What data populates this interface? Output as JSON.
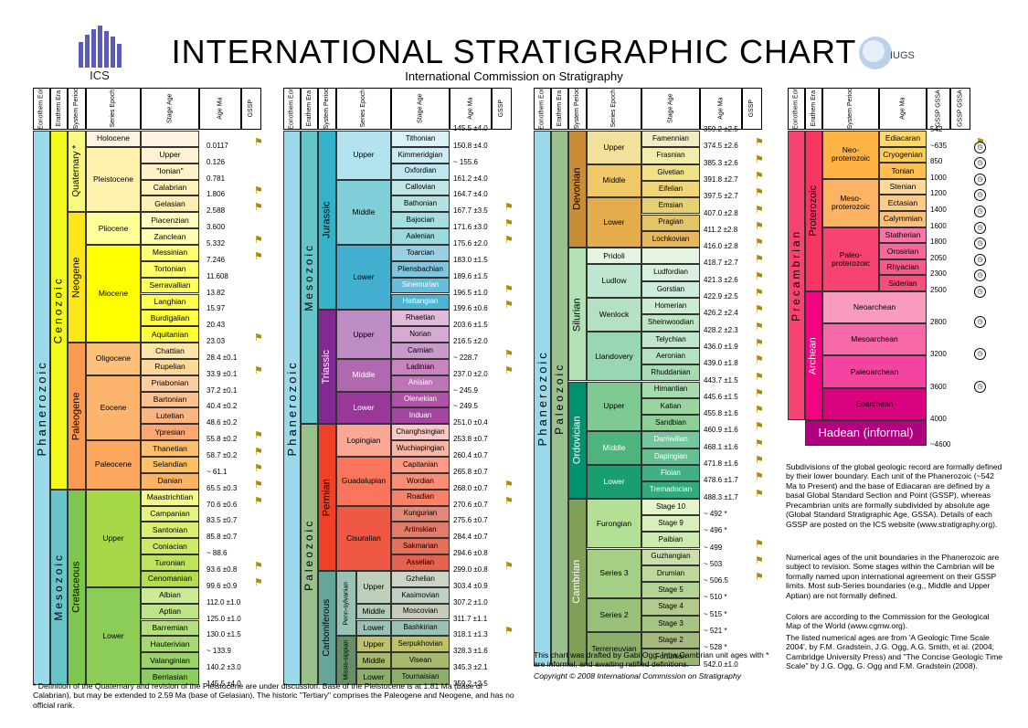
{
  "header": {
    "title": "INTERNATIONAL STRATIGRAPHIC CHART",
    "subtitle": "International Commission on Stratigraphy",
    "ics_label": "ICS",
    "iugs_label": "IUGS"
  },
  "colors": {
    "phanerozoic": "#9AD9EA",
    "cenozoic": "#F2F91D",
    "quaternary": "#F9F97F",
    "neogene": "#FFE619",
    "paleogene": "#FD9A52",
    "mesozoic": "#67C5CA",
    "cretaceous": "#7FC64E",
    "jurassic": "#34B2C9",
    "triassic": "#812B92",
    "paleozoic": "#99C08D",
    "permian": "#F04028",
    "carboniferous": "#67A599",
    "devonian": "#CB8C37",
    "silurian": "#B3E1B6",
    "ordovician": "#009270",
    "cambrian": "#7FA056",
    "precambrian": "#F74370",
    "proterozoic": "#F73563",
    "archean": "#F0047F",
    "hadean": "#AE027E"
  },
  "col_headers": {
    "eon": "Eonothem Eon",
    "era": "Erathem Era",
    "period": "System Period",
    "epoch": "Series Epoch",
    "stage": "Stage Age",
    "age": "Age Ma",
    "gssp": "GSSP",
    "gssa": "GSSP GSSA"
  },
  "col1": {
    "eon": "Phanerozoic",
    "era_ceno": "Cenozoic",
    "era_meso": "Mesozoic",
    "quaternary": "Quaternary *",
    "neogene": "Neogene",
    "paleogene": "Paleogene",
    "cretaceous": "Cretaceous",
    "rows": [
      {
        "epoch": "Holocene",
        "stage": "",
        "age": "0.0117"
      },
      {
        "epoch": "Pleistocene",
        "stage": "Upper",
        "age": "0.126"
      },
      {
        "epoch": "",
        "stage": "\"Ionian\"",
        "age": "0.781"
      },
      {
        "epoch": "",
        "stage": "Calabrian",
        "age": "1.806"
      },
      {
        "epoch": "",
        "stage": "Gelasian",
        "age": "2.588"
      },
      {
        "epoch": "Pliocene",
        "stage": "Piacenzian",
        "age": "3.600"
      },
      {
        "epoch": "",
        "stage": "Zanclean",
        "age": "5.332"
      },
      {
        "epoch": "Miocene",
        "stage": "Messinian",
        "age": "7.246"
      },
      {
        "epoch": "",
        "stage": "Tortonian",
        "age": "11.608"
      },
      {
        "epoch": "",
        "stage": "Serravallian",
        "age": "13.82"
      },
      {
        "epoch": "",
        "stage": "Langhian",
        "age": "15.97"
      },
      {
        "epoch": "",
        "stage": "Burdigalian",
        "age": "20.43"
      },
      {
        "epoch": "",
        "stage": "Aquitanian",
        "age": "23.03"
      },
      {
        "epoch": "Oligocene",
        "stage": "Chattian",
        "age": "28.4 ±0.1"
      },
      {
        "epoch": "",
        "stage": "Rupelian",
        "age": "33.9 ±0.1"
      },
      {
        "epoch": "Eocene",
        "stage": "Priabonian",
        "age": "37.2 ±0.1"
      },
      {
        "epoch": "",
        "stage": "Bartonian",
        "age": "40.4 ±0.2"
      },
      {
        "epoch": "",
        "stage": "Lutetian",
        "age": "48.6 ±0.2"
      },
      {
        "epoch": "",
        "stage": "Ypresian",
        "age": "55.8 ±0.2"
      },
      {
        "epoch": "Paleocene",
        "stage": "Thanetian",
        "age": "58.7 ±0.2"
      },
      {
        "epoch": "",
        "stage": "Selandian",
        "age": "~ 61.1"
      },
      {
        "epoch": "",
        "stage": "Danian",
        "age": "65.5 ±0.3"
      },
      {
        "epoch": "Upper",
        "stage": "Maastrichtian",
        "age": "70.6 ±0.6"
      },
      {
        "epoch": "",
        "stage": "Campanian",
        "age": "83.5 ±0.7"
      },
      {
        "epoch": "",
        "stage": "Santonian",
        "age": "85.8 ±0.7"
      },
      {
        "epoch": "",
        "stage": "Coniacian",
        "age": "~ 88.6"
      },
      {
        "epoch": "",
        "stage": "Turonian",
        "age": "93.6 ±0.8"
      },
      {
        "epoch": "",
        "stage": "Cenomanian",
        "age": "99.6 ±0.9"
      },
      {
        "epoch": "Lower",
        "stage": "Albian",
        "age": "112.0 ±1.0"
      },
      {
        "epoch": "",
        "stage": "Aptian",
        "age": "125.0 ±1.0"
      },
      {
        "epoch": "",
        "stage": "Barremian",
        "age": "130.0 ±1.5"
      },
      {
        "epoch": "",
        "stage": "Hauterivian",
        "age": "~ 133.9"
      },
      {
        "epoch": "",
        "stage": "Valanginian",
        "age": "140.2 ±3.0"
      },
      {
        "epoch": "",
        "stage": "Berriasian",
        "age": "145.5 ±4.0"
      }
    ]
  },
  "col2": {
    "eon": "Phanerozoic",
    "era_meso": "Mesozoic",
    "era_paleo": "Paleozoic",
    "jurassic": "Jurassic",
    "triassic": "Triassic",
    "permian": "Permian",
    "carboniferous": "Carboniferous",
    "penn": "Penn-sylvanian",
    "miss": "Missis-sippian",
    "top_age": "145.5 ±4.0",
    "rows": [
      {
        "epoch": "Upper",
        "stage": "Tithonian",
        "age": "150.8 ±4.0"
      },
      {
        "epoch": "",
        "stage": "Kimmeridgian",
        "age": "~ 155.6"
      },
      {
        "epoch": "",
        "stage": "Oxfordian",
        "age": "161.2 ±4.0"
      },
      {
        "epoch": "Middle",
        "stage": "Callovian",
        "age": "164.7 ±4.0"
      },
      {
        "epoch": "",
        "stage": "Bathonian",
        "age": "167.7 ±3.5"
      },
      {
        "epoch": "",
        "stage": "Bajocian",
        "age": "171.6 ±3.0"
      },
      {
        "epoch": "",
        "stage": "Aalenian",
        "age": "175.6 ±2.0"
      },
      {
        "epoch": "Lower",
        "stage": "Toarcian",
        "age": "183.0 ±1.5"
      },
      {
        "epoch": "",
        "stage": "Pliensbachian",
        "age": "189.6 ±1.5"
      },
      {
        "epoch": "",
        "stage": "Sinemurian",
        "age": "196.5 ±1.0"
      },
      {
        "epoch": "",
        "stage": "Hettangian",
        "age": "199.6 ±0.6"
      },
      {
        "epoch": "Upper",
        "stage": "Rhaetian",
        "age": "203.6 ±1.5"
      },
      {
        "epoch": "",
        "stage": "Norian",
        "age": "216.5 ±2.0"
      },
      {
        "epoch": "",
        "stage": "Carnian",
        "age": "~ 228.7"
      },
      {
        "epoch": "Middle",
        "stage": "Ladinian",
        "age": "237.0 ±2.0"
      },
      {
        "epoch": "",
        "stage": "Anisian",
        "age": "~ 245.9"
      },
      {
        "epoch": "Lower",
        "stage": "Olenekian",
        "age": "~ 249.5"
      },
      {
        "epoch": "",
        "stage": "Induan",
        "age": "251.0 ±0.4"
      },
      {
        "epoch": "Lopingian",
        "stage": "Changhsingian",
        "age": "253.8 ±0.7"
      },
      {
        "epoch": "",
        "stage": "Wuchiapingian",
        "age": "260.4 ±0.7"
      },
      {
        "epoch": "Guadalupian",
        "stage": "Capitanian",
        "age": "265.8 ±0.7"
      },
      {
        "epoch": "",
        "stage": "Wordian",
        "age": "268.0 ±0.7"
      },
      {
        "epoch": "",
        "stage": "Roadian",
        "age": "270.6 ±0.7"
      },
      {
        "epoch": "Cisuralian",
        "stage": "Kungurian",
        "age": "275.6 ±0.7"
      },
      {
        "epoch": "",
        "stage": "Artinskian",
        "age": "284.4 ±0.7"
      },
      {
        "epoch": "",
        "stage": "Sakmarian",
        "age": "294.6 ±0.8"
      },
      {
        "epoch": "",
        "stage": "Asselian",
        "age": "299.0 ±0.8"
      },
      {
        "epoch": "Upper",
        "stage": "Gzhelian",
        "age": "303.4 ±0.9"
      },
      {
        "epoch": "",
        "stage": "Kasimovian",
        "age": "307.2 ±1.0"
      },
      {
        "epoch": "Middle",
        "stage": "Moscovian",
        "age": "311.7 ±1.1"
      },
      {
        "epoch": "Lower",
        "stage": "Bashkirian",
        "age": "318.1 ±1.3"
      },
      {
        "epoch": "Upper",
        "stage": "Serpukhovian",
        "age": "328.3 ±1.6"
      },
      {
        "epoch": "Middle",
        "stage": "Visean",
        "age": "345.3 ±2.1"
      },
      {
        "epoch": "Lower",
        "stage": "Tournaisian",
        "age": "359.2 ±2.5"
      }
    ]
  },
  "col3": {
    "eon": "Phanerozoic",
    "era_paleo": "Paleozoic",
    "devonian": "Devonian",
    "silurian": "Silurian",
    "ordovician": "Ordovician",
    "cambrian": "Cambrian",
    "top_age": "359.2 ±2.5",
    "rows": [
      {
        "epoch": "Upper",
        "stage": "Famennian",
        "age": "374.5 ±2.6"
      },
      {
        "epoch": "",
        "stage": "Frasnian",
        "age": "385.3 ±2.6"
      },
      {
        "epoch": "Middle",
        "stage": "Givetian",
        "age": "391.8 ±2.7"
      },
      {
        "epoch": "",
        "stage": "Eifelian",
        "age": "397.5 ±2.7"
      },
      {
        "epoch": "Lower",
        "stage": "Emsian",
        "age": "407.0 ±2.8"
      },
      {
        "epoch": "",
        "stage": "Pragian",
        "age": "411.2 ±2.8"
      },
      {
        "epoch": "",
        "stage": "Lochkovian",
        "age": "416.0 ±2.8"
      },
      {
        "epoch": "Pridoli",
        "stage": "",
        "age": "418.7 ±2.7"
      },
      {
        "epoch": "Ludlow",
        "stage": "Ludfordian",
        "age": "421.3 ±2.6"
      },
      {
        "epoch": "",
        "stage": "Gorstian",
        "age": "422.9 ±2.5"
      },
      {
        "epoch": "Wenlock",
        "stage": "Homerian",
        "age": "426.2 ±2.4"
      },
      {
        "epoch": "",
        "stage": "Sheinwoodian",
        "age": "428.2 ±2.3"
      },
      {
        "epoch": "Llandovery",
        "stage": "Telychian",
        "age": "436.0 ±1.9"
      },
      {
        "epoch": "",
        "stage": "Aeronian",
        "age": "439.0 ±1.8"
      },
      {
        "epoch": "",
        "stage": "Rhuddanian",
        "age": "443.7 ±1.5"
      },
      {
        "epoch": "Upper",
        "stage": "Hirnantian",
        "age": "445.6 ±1.5"
      },
      {
        "epoch": "",
        "stage": "Katian",
        "age": "455.8 ±1.6"
      },
      {
        "epoch": "",
        "stage": "Sandbian",
        "age": "460.9 ±1.6"
      },
      {
        "epoch": "Middle",
        "stage": "Darriwilian",
        "age": "468.1 ±1.6"
      },
      {
        "epoch": "",
        "stage": "Dapingian",
        "age": "471.8 ±1.6"
      },
      {
        "epoch": "Lower",
        "stage": "Floian",
        "age": "478.6 ±1.7"
      },
      {
        "epoch": "",
        "stage": "Tremadocian",
        "age": "488.3 ±1.7"
      },
      {
        "epoch": "Furongian",
        "stage": "Stage 10",
        "age": "~ 492 *"
      },
      {
        "epoch": "",
        "stage": "Stage 9",
        "age": "~ 496 *"
      },
      {
        "epoch": "",
        "stage": "Paibian",
        "age": "~ 499"
      },
      {
        "epoch": "Series 3",
        "stage": "Guzhangian",
        "age": "~ 503"
      },
      {
        "epoch": "",
        "stage": "Drumian",
        "age": "~ 506.5"
      },
      {
        "epoch": "",
        "stage": "Stage 5",
        "age": "~ 510 *"
      },
      {
        "epoch": "Series 2",
        "stage": "Stage 4",
        "age": "~ 515 *"
      },
      {
        "epoch": "",
        "stage": "Stage 3",
        "age": "~ 521 *"
      },
      {
        "epoch": "Terreneuvian",
        "stage": "Stage 2",
        "age": "~ 528 *"
      },
      {
        "epoch": "",
        "stage": "Fortunian",
        "age": "542.0 ±1.0"
      }
    ]
  },
  "col4": {
    "eon": "Precambrian",
    "proterozoic": "Proterozoic",
    "archean": "Archean",
    "hadean": "Hadean (informal)",
    "eras": [
      "Neo-proterozoic",
      "Meso-proterozoic",
      "Paleo-proterozoic",
      "Neoarchean",
      "Mesoarchean",
      "Paleoarchean",
      "Eoarchean"
    ],
    "periods": [
      "Ediacaran",
      "Cryogenian",
      "Tonian",
      "Stenian",
      "Ectasian",
      "Calymmian",
      "Statherian",
      "Orosirian",
      "Rhyacian",
      "Siderian"
    ],
    "ages": [
      "542",
      "~635",
      "850",
      "1000",
      "1200",
      "1400",
      "1600",
      "1800",
      "2050",
      "2300",
      "2500",
      "2800",
      "3200",
      "3600",
      "4000",
      "~4600"
    ]
  },
  "notes": {
    "col1_footnote": "* Definition of the Quaternary and revision of the Pleistocene are under discussion.  Base of the Pleistocene is at 1.81 Ma (base of Calabrian), but may be extended to 2.59 Ma (base of Gelasian).  The historic \"Tertiary\" comprises the Paleogene and Neogene, and has no official rank.",
    "col3_note1": "This chart was drafted by Gabi Ogg. Intra Cambrian unit ages with * are informal, and awaiting ratified definitions.",
    "col3_note2": "Copyright © 2008 International Commission on Stratigraphy",
    "right1": "Subdivisions of the global geologic record are formally defined by their lower boundary.  Each unit of the Phanerozoic (~542 Ma to Present) and the base of Ediacaran are defined by a basal Global Standard Section and Point (GSSP), whereas Precambrian units are formally subdivided by absolute age (Global Standard Stratigraphic Age, GSSA). Details of each GSSP are posted on the ICS  website (www.stratigraphy.org).",
    "right2": "Numerical ages of the unit boundaries in the Phanerozoic are subject to revision. Some stages within the Cambrian will be formally named upon international agreement on their GSSP limits. Most sub-Series boundaries (e.g., Middle and Upper Aptian) are not formally defined.",
    "right3": "Colors are according to the Commission for the Geological Map of the World (www.cgmw.org).",
    "right4": "The listed numerical ages are from 'A Geologic Time Scale 2004', by F.M. Gradstein, J.G. Ogg, A.G. Smith, et al. (2004; Cambridge University Press) and \"The Concise Geologic Time Scale\" by J.G. Ogg, G. Ogg and F.M. Gradstein (2008)."
  }
}
